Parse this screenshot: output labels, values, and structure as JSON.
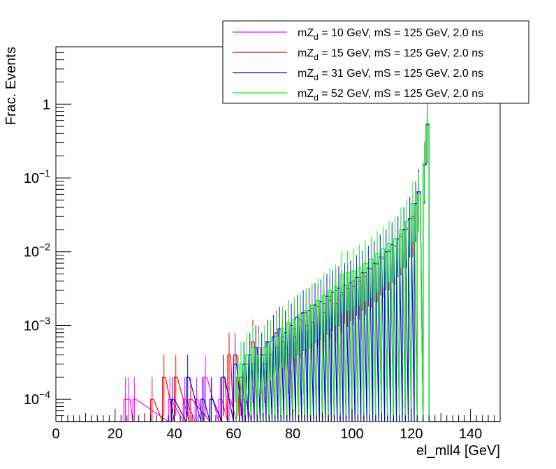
{
  "chart_data": {
    "type": "line",
    "style": "step-histogram",
    "xlabel": "el_mll4 [GeV]",
    "ylabel": "Frac. Events",
    "xlim": [
      0,
      150
    ],
    "ylim": [
      5e-05,
      6
    ],
    "y_log_scale": true,
    "x_ticks": [
      "0",
      "20",
      "40",
      "60",
      "80",
      "100",
      "120",
      "140"
    ],
    "y_ticks": [
      {
        "value": 0.0001,
        "base": "10",
        "exp": "−4"
      },
      {
        "value": 0.001,
        "base": "10",
        "exp": "−3"
      },
      {
        "value": 0.01,
        "base": "10",
        "exp": "−2"
      },
      {
        "value": 0.1,
        "base": "10",
        "exp": "−1"
      },
      {
        "value": 1,
        "base": "1",
        "exp": ""
      }
    ],
    "legend_position": "top-right",
    "bin_width": 1,
    "series": [
      {
        "name_parts": [
          "mZ",
          "d",
          " = 10 GeV, mS = 125 GeV, 2.0 ns"
        ],
        "color": "#ff00ff",
        "points": [
          [
            23,
            0.0001
          ],
          [
            24,
            0.0001
          ],
          [
            26,
            0.0001
          ],
          [
            38,
            0.0001
          ],
          [
            43,
            0.0001
          ],
          [
            47,
            0.0001
          ],
          [
            50,
            0.0002
          ],
          [
            55,
            0.0001
          ],
          [
            58,
            0.0001
          ],
          [
            61,
            0.0002
          ],
          [
            63,
            0.0001
          ],
          [
            66,
            0.0003
          ],
          [
            68,
            0.0004
          ],
          [
            70,
            0.0003
          ],
          [
            72,
            0.0004
          ],
          [
            74,
            0.0005
          ],
          [
            76,
            0.0007
          ],
          [
            78,
            0.0004
          ],
          [
            80,
            0.0007
          ],
          [
            82,
            0.0012
          ],
          [
            84,
            0.001
          ],
          [
            86,
            0.0011
          ],
          [
            88,
            0.0018
          ],
          [
            90,
            0.0015
          ],
          [
            92,
            0.0025
          ],
          [
            94,
            0.002
          ],
          [
            96,
            0.0026
          ],
          [
            98,
            0.0035
          ],
          [
            100,
            0.0034
          ],
          [
            102,
            0.004
          ],
          [
            104,
            0.0046
          ],
          [
            106,
            0.0058
          ],
          [
            108,
            0.0068
          ],
          [
            110,
            0.008
          ],
          [
            112,
            0.0105
          ],
          [
            114,
            0.012
          ],
          [
            116,
            0.017
          ],
          [
            118,
            0.021
          ],
          [
            120,
            0.028
          ],
          [
            122,
            0.06
          ],
          [
            124,
            0.15
          ],
          [
            125,
            0.52
          ]
        ]
      },
      {
        "name_parts": [
          "mZ",
          "d",
          " = 15 GeV, mS = 125 GeV, 2.0 ns"
        ],
        "color": "#ff0000",
        "points": [
          [
            32,
            0.0001
          ],
          [
            36,
            0.0002
          ],
          [
            40,
            0.0002
          ],
          [
            45,
            0.0001
          ],
          [
            52,
            0.0001
          ],
          [
            56,
            0.0002
          ],
          [
            58,
            0.0004
          ],
          [
            60,
            0.0004
          ],
          [
            62,
            0.0002
          ],
          [
            64,
            0.0003
          ],
          [
            66,
            0.0006
          ],
          [
            68,
            0.0005
          ],
          [
            70,
            0.0004
          ],
          [
            72,
            0.0006
          ],
          [
            74,
            0.0008
          ],
          [
            76,
            0.0006
          ],
          [
            78,
            0.0011
          ],
          [
            80,
            0.0009
          ],
          [
            82,
            0.0012
          ],
          [
            84,
            0.0015
          ],
          [
            86,
            0.0017
          ],
          [
            88,
            0.0018
          ],
          [
            90,
            0.002
          ],
          [
            92,
            0.0022
          ],
          [
            94,
            0.003
          ],
          [
            96,
            0.0028
          ],
          [
            98,
            0.0032
          ],
          [
            100,
            0.004
          ],
          [
            102,
            0.0045
          ],
          [
            104,
            0.0052
          ],
          [
            106,
            0.006
          ],
          [
            108,
            0.007
          ],
          [
            110,
            0.0085
          ],
          [
            112,
            0.01
          ],
          [
            114,
            0.012
          ],
          [
            116,
            0.016
          ],
          [
            118,
            0.02
          ],
          [
            120,
            0.03
          ],
          [
            122,
            0.065
          ],
          [
            124,
            0.15
          ],
          [
            125,
            0.53
          ]
        ]
      },
      {
        "name_parts": [
          "mZ",
          "d",
          " = 31 GeV, mS = 125 GeV, 2.0 ns"
        ],
        "color": "#0000ff",
        "points": [
          [
            39,
            0.0001
          ],
          [
            44,
            0.0002
          ],
          [
            49,
            0.0001
          ],
          [
            52,
            0.0001
          ],
          [
            56,
            0.0002
          ],
          [
            60,
            0.0003
          ],
          [
            63,
            0.0003
          ],
          [
            65,
            0.0004
          ],
          [
            67,
            0.0005
          ],
          [
            69,
            0.0004
          ],
          [
            71,
            0.0006
          ],
          [
            73,
            0.0007
          ],
          [
            75,
            0.0009
          ],
          [
            77,
            0.0008
          ],
          [
            79,
            0.001
          ],
          [
            81,
            0.0013
          ],
          [
            83,
            0.0015
          ],
          [
            85,
            0.0016
          ],
          [
            87,
            0.0019
          ],
          [
            89,
            0.0021
          ],
          [
            91,
            0.0025
          ],
          [
            93,
            0.0028
          ],
          [
            95,
            0.0032
          ],
          [
            97,
            0.0035
          ],
          [
            99,
            0.0038
          ],
          [
            101,
            0.0045
          ],
          [
            103,
            0.0052
          ],
          [
            105,
            0.006
          ],
          [
            107,
            0.007
          ],
          [
            109,
            0.0085
          ],
          [
            111,
            0.01
          ],
          [
            113,
            0.0125
          ],
          [
            115,
            0.015
          ],
          [
            117,
            0.02
          ],
          [
            119,
            0.028
          ],
          [
            121,
            0.045
          ],
          [
            122,
            0.065
          ],
          [
            124,
            0.15
          ],
          [
            125,
            0.53
          ]
        ]
      },
      {
        "name_parts": [
          "mZ",
          "d",
          " = 52 GeV, mS = 125 GeV, 2.0 ns"
        ],
        "color": "#00ff00",
        "points": [
          [
            61,
            0.0002
          ],
          [
            62,
            0.0003
          ],
          [
            64,
            0.0004
          ],
          [
            66,
            0.0005
          ],
          [
            68,
            0.0004
          ],
          [
            70,
            0.0005
          ],
          [
            72,
            0.0006
          ],
          [
            74,
            0.0007
          ],
          [
            76,
            0.0009
          ],
          [
            78,
            0.0011
          ],
          [
            80,
            0.0012
          ],
          [
            82,
            0.0014
          ],
          [
            84,
            0.0016
          ],
          [
            86,
            0.0019
          ],
          [
            88,
            0.0022
          ],
          [
            90,
            0.0026
          ],
          [
            92,
            0.003
          ],
          [
            94,
            0.0034
          ],
          [
            96,
            0.005
          ],
          [
            98,
            0.0052
          ],
          [
            100,
            0.0055
          ],
          [
            102,
            0.0062
          ],
          [
            104,
            0.007
          ],
          [
            106,
            0.008
          ],
          [
            108,
            0.0095
          ],
          [
            110,
            0.011
          ],
          [
            112,
            0.013
          ],
          [
            114,
            0.015
          ],
          [
            116,
            0.02
          ],
          [
            118,
            0.026
          ],
          [
            120,
            0.045
          ],
          [
            122,
            0.06
          ],
          [
            124,
            0.16
          ],
          [
            125,
            0.55
          ]
        ]
      }
    ]
  }
}
